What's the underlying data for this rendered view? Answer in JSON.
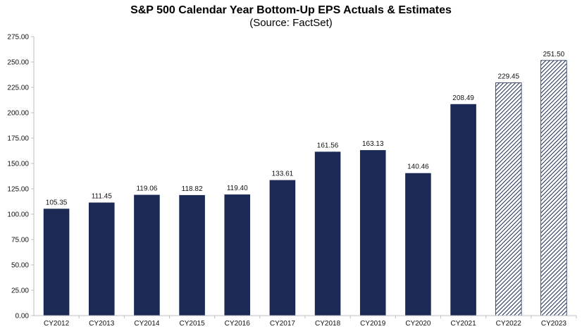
{
  "chart_data": {
    "type": "bar",
    "title": "S&P 500 Calendar Year Bottom-Up EPS Actuals & Estimates",
    "subtitle": "(Source: FactSet)",
    "xlabel": "",
    "ylabel": "",
    "ylim": [
      0,
      275
    ],
    "y_ticks": [
      "0.00",
      "25.00",
      "50.00",
      "75.00",
      "100.00",
      "125.00",
      "150.00",
      "175.00",
      "200.00",
      "225.00",
      "250.00",
      "275.00"
    ],
    "categories": [
      "CY2012",
      "CY2013",
      "CY2014",
      "CY2015",
      "CY2016",
      "CY2017",
      "CY2018",
      "CY2019",
      "CY2020",
      "CY2021",
      "CY2022",
      "CY2023"
    ],
    "values": [
      105.35,
      111.45,
      119.06,
      118.82,
      119.4,
      133.61,
      161.56,
      163.13,
      140.46,
      208.49,
      229.45,
      251.5
    ],
    "value_labels": [
      "105.35",
      "111.45",
      "119.06",
      "118.82",
      "119.40",
      "133.61",
      "161.56",
      "163.13",
      "140.46",
      "208.49",
      "229.45",
      "251.50"
    ],
    "estimate": [
      false,
      false,
      false,
      false,
      false,
      false,
      false,
      false,
      false,
      false,
      true,
      true
    ],
    "grid": false,
    "legend": "none",
    "colors": {
      "actual": "#1b2a55",
      "estimate_stroke": "#1b2a55",
      "estimate_fill": "#ffffff",
      "axis": "#bfbfbf"
    }
  }
}
